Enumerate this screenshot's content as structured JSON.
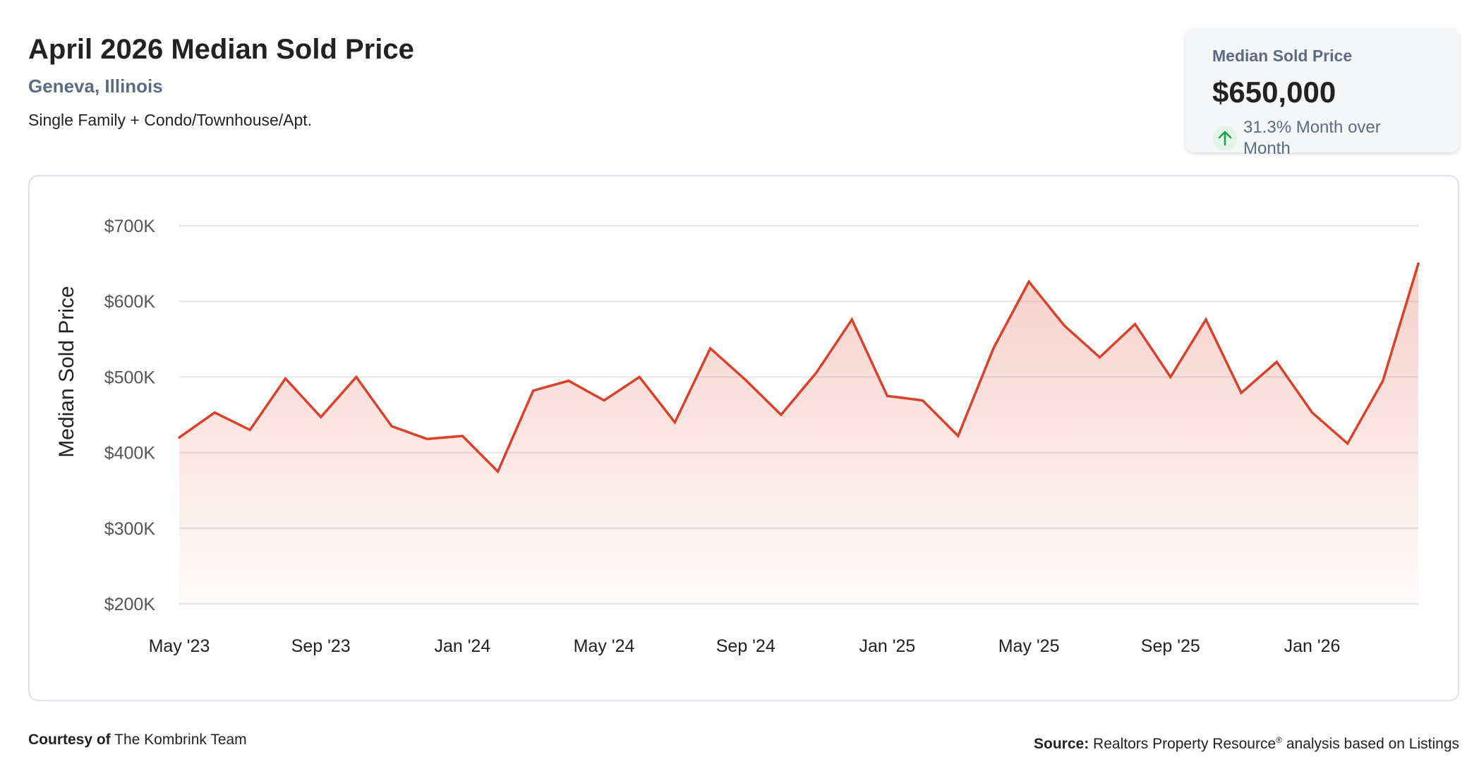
{
  "header": {
    "title": "April 2026 Median Sold Price",
    "location": "Geneva, Illinois",
    "subtitle": "Single Family + Condo/Townhouse/Apt."
  },
  "stat_card": {
    "label": "Median Sold Price",
    "value": "$650,000",
    "change": "31.3% Month over Month",
    "change_icon": "arrow-up-icon",
    "change_color": "#1e9e4a"
  },
  "footer": {
    "courtesy_label": "Courtesy of",
    "courtesy_name": "The Kombrink Team",
    "source_label": "Source:",
    "source_text": "Realtors Property Resource",
    "source_mark": "®",
    "source_suffix": "analysis based on Listings"
  },
  "colors": {
    "line": "#d9412b",
    "grid": "#e3e6ea",
    "axis_text": "#555555"
  },
  "chart_data": {
    "type": "area",
    "title": "April 2026 Median Sold Price",
    "ylabel": "Median Sold Price",
    "xlabel": "",
    "ylim": [
      200000,
      700000
    ],
    "y_ticks": [
      {
        "value": 700000,
        "label": "$700K"
      },
      {
        "value": 600000,
        "label": "$600K"
      },
      {
        "value": 500000,
        "label": "$500K"
      },
      {
        "value": 400000,
        "label": "$400K"
      },
      {
        "value": 300000,
        "label": "$300K"
      },
      {
        "value": 200000,
        "label": "$200K"
      }
    ],
    "x_ticks": [
      {
        "x": "2023-05",
        "label": "May '23"
      },
      {
        "x": "2023-09",
        "label": "Sep '23"
      },
      {
        "x": "2024-01",
        "label": "Jan '24"
      },
      {
        "x": "2024-05",
        "label": "May '24"
      },
      {
        "x": "2024-09",
        "label": "Sep '24"
      },
      {
        "x": "2025-01",
        "label": "Jan '25"
      },
      {
        "x": "2025-05",
        "label": "May '25"
      },
      {
        "x": "2025-09",
        "label": "Sep '25"
      },
      {
        "x": "2026-01",
        "label": "Jan '26"
      }
    ],
    "grid": true,
    "legend": "none",
    "x": [
      "2023-05",
      "2023-06",
      "2023-07",
      "2023-08",
      "2023-09",
      "2023-10",
      "2023-11",
      "2023-12",
      "2024-01",
      "2024-02",
      "2024-03",
      "2024-04",
      "2024-05",
      "2024-06",
      "2024-07",
      "2024-08",
      "2024-09",
      "2024-10",
      "2024-11",
      "2024-12",
      "2025-01",
      "2025-02",
      "2025-03",
      "2025-04",
      "2025-05",
      "2025-06",
      "2025-07",
      "2025-08",
      "2025-09",
      "2025-10",
      "2025-11",
      "2025-12",
      "2026-01",
      "2026-02",
      "2026-03",
      "2026-04"
    ],
    "values": [
      420000,
      453000,
      430000,
      498000,
      447000,
      500000,
      435000,
      418000,
      422000,
      375000,
      482000,
      495000,
      469000,
      500000,
      440000,
      538000,
      496000,
      450000,
      506000,
      576000,
      475000,
      469000,
      422000,
      538000,
      626000,
      568000,
      526000,
      570000,
      500000,
      576000,
      479000,
      520000,
      453000,
      412000,
      495000,
      650000
    ]
  }
}
